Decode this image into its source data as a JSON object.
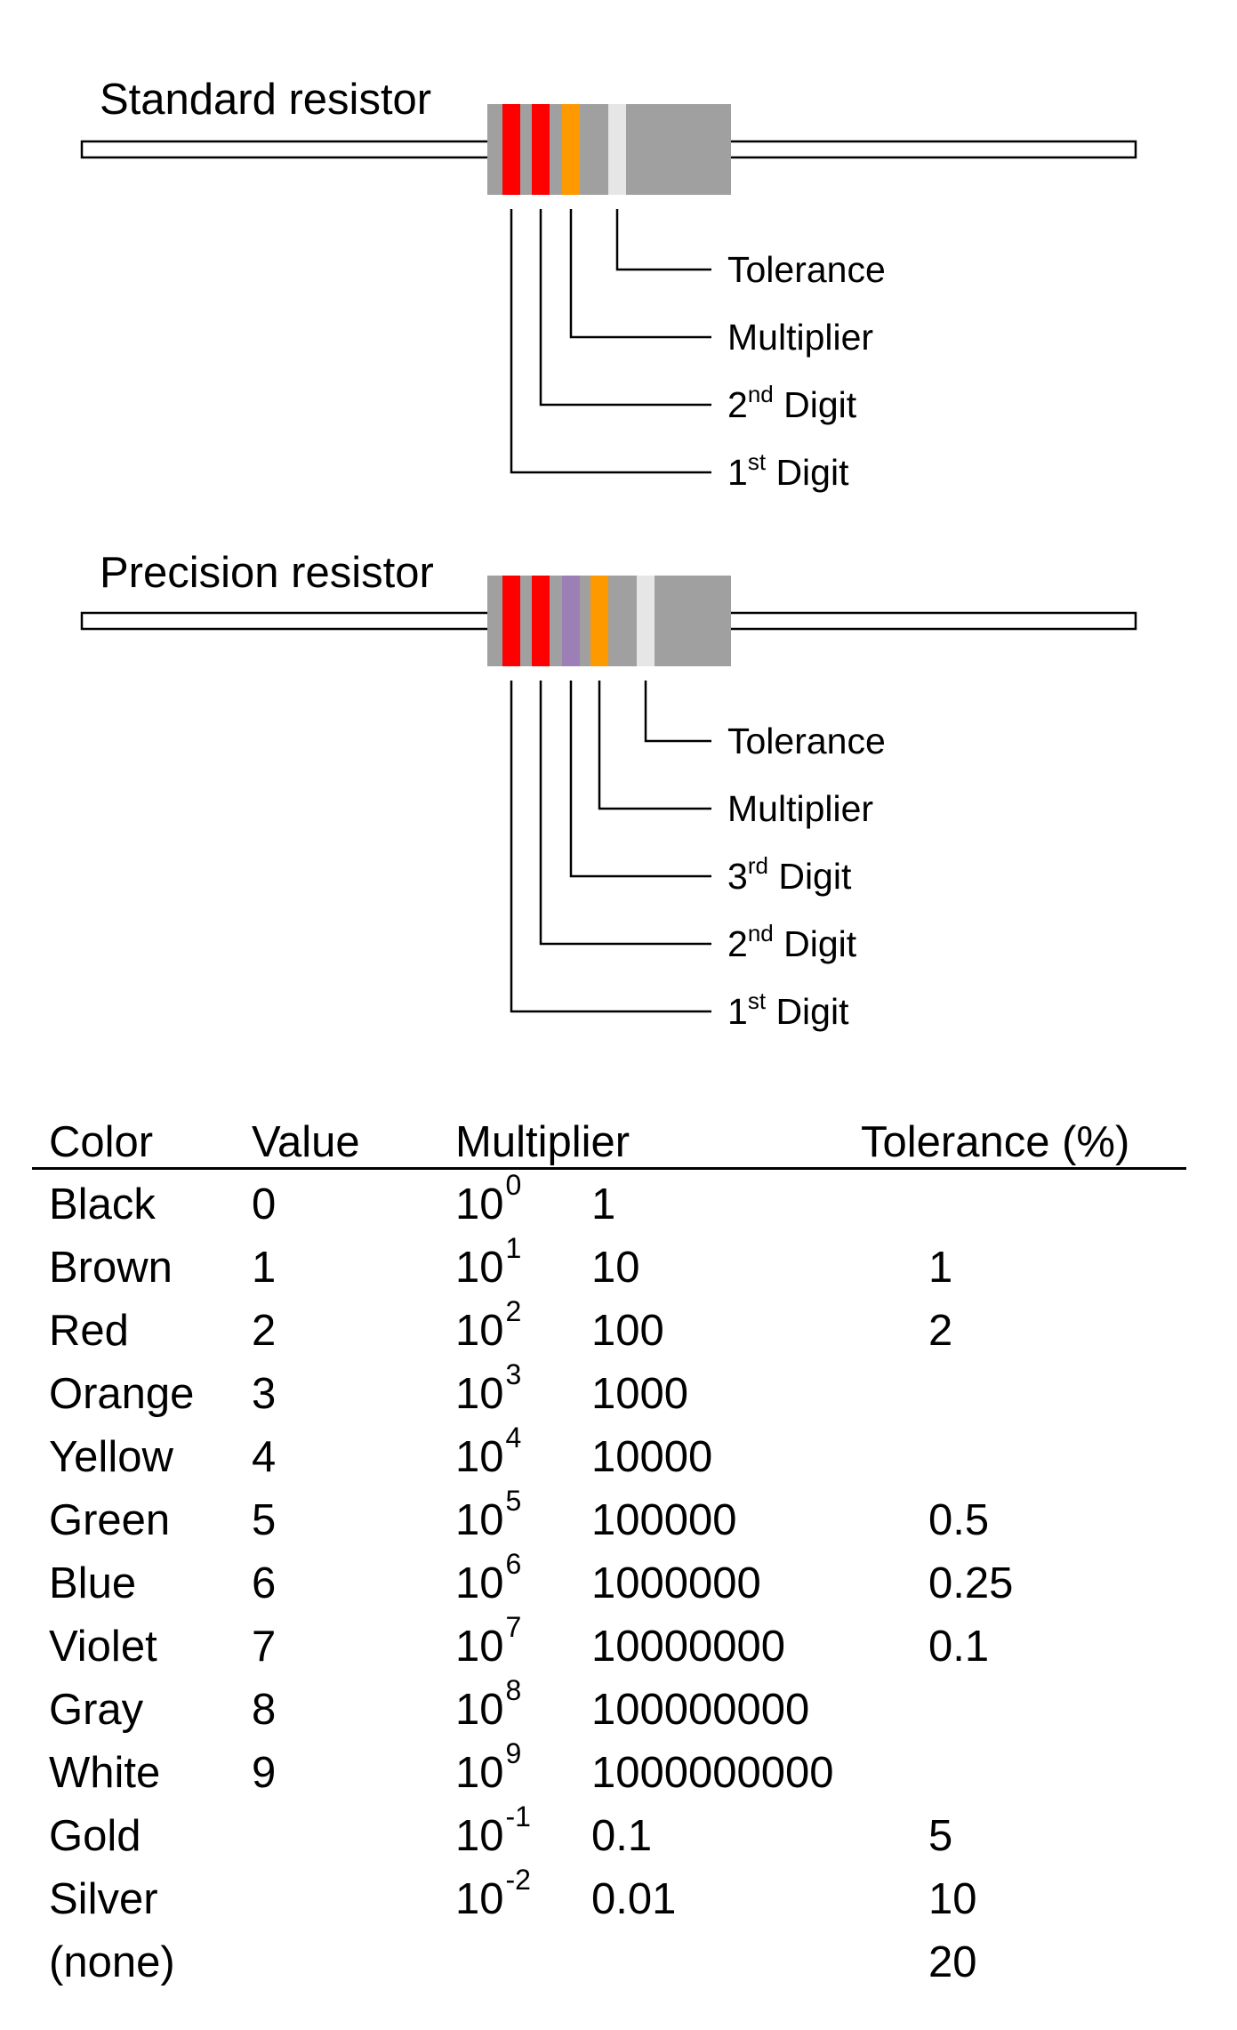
{
  "colors": {
    "body": "#a0a0a0",
    "red": "#ff0000",
    "orange": "#ff9900",
    "violet": "#9c7fb5",
    "silver": "#e6e6e6",
    "lead_fill": "#ffffff",
    "line": "#000000"
  },
  "standard": {
    "title": "Standard resistor",
    "bands": [
      "red",
      "red",
      "orange",
      "silver"
    ],
    "labels": [
      {
        "text": "Tolerance",
        "sup": ""
      },
      {
        "text": "Multiplier",
        "sup": ""
      },
      {
        "num": "2",
        "sup": "nd",
        "text": " Digit"
      },
      {
        "num": "1",
        "sup": "st",
        "text": " Digit"
      }
    ]
  },
  "precision": {
    "title": "Precision resistor",
    "bands": [
      "red",
      "red",
      "violet",
      "orange",
      "silver"
    ],
    "labels": [
      {
        "text": "Tolerance",
        "sup": ""
      },
      {
        "text": "Multiplier",
        "sup": ""
      },
      {
        "num": "3",
        "sup": "rd",
        "text": " Digit"
      },
      {
        "num": "2",
        "sup": "nd",
        "text": " Digit"
      },
      {
        "num": "1",
        "sup": "st",
        "text": " Digit"
      }
    ]
  },
  "table": {
    "headers": {
      "color": "Color",
      "value": "Value",
      "multiplier": "Multiplier",
      "tolerance": "Tolerance (%)"
    },
    "rows": [
      {
        "color": "Black",
        "value": "0",
        "base": "10",
        "exp": "0",
        "mult": "1",
        "tol": ""
      },
      {
        "color": "Brown",
        "value": "1",
        "base": "10",
        "exp": "1",
        "mult": "10",
        "tol": "1"
      },
      {
        "color": "Red",
        "value": "2",
        "base": "10",
        "exp": "2",
        "mult": "100",
        "tol": "2"
      },
      {
        "color": "Orange",
        "value": "3",
        "base": "10",
        "exp": "3",
        "mult": "1000",
        "tol": ""
      },
      {
        "color": "Yellow",
        "value": "4",
        "base": "10",
        "exp": "4",
        "mult": "10000",
        "tol": ""
      },
      {
        "color": "Green",
        "value": "5",
        "base": "10",
        "exp": "5",
        "mult": "100000",
        "tol": "0.5"
      },
      {
        "color": "Blue",
        "value": "6",
        "base": "10",
        "exp": "6",
        "mult": "1000000",
        "tol": "0.25"
      },
      {
        "color": "Violet",
        "value": "7",
        "base": "10",
        "exp": "7",
        "mult": "10000000",
        "tol": "0.1"
      },
      {
        "color": "Gray",
        "value": "8",
        "base": "10",
        "exp": "8",
        "mult": "100000000",
        "tol": ""
      },
      {
        "color": "White",
        "value": "9",
        "base": "10",
        "exp": "9",
        "mult": "1000000000",
        "tol": ""
      },
      {
        "color": "Gold",
        "value": "",
        "base": "10",
        "exp": "-1",
        "mult": "0.1",
        "tol": "5"
      },
      {
        "color": "Silver",
        "value": "",
        "base": "10",
        "exp": "-2",
        "mult": "0.01",
        "tol": "10"
      },
      {
        "color": "(none)",
        "value": "",
        "base": "",
        "exp": "",
        "mult": "",
        "tol": "20"
      }
    ]
  }
}
